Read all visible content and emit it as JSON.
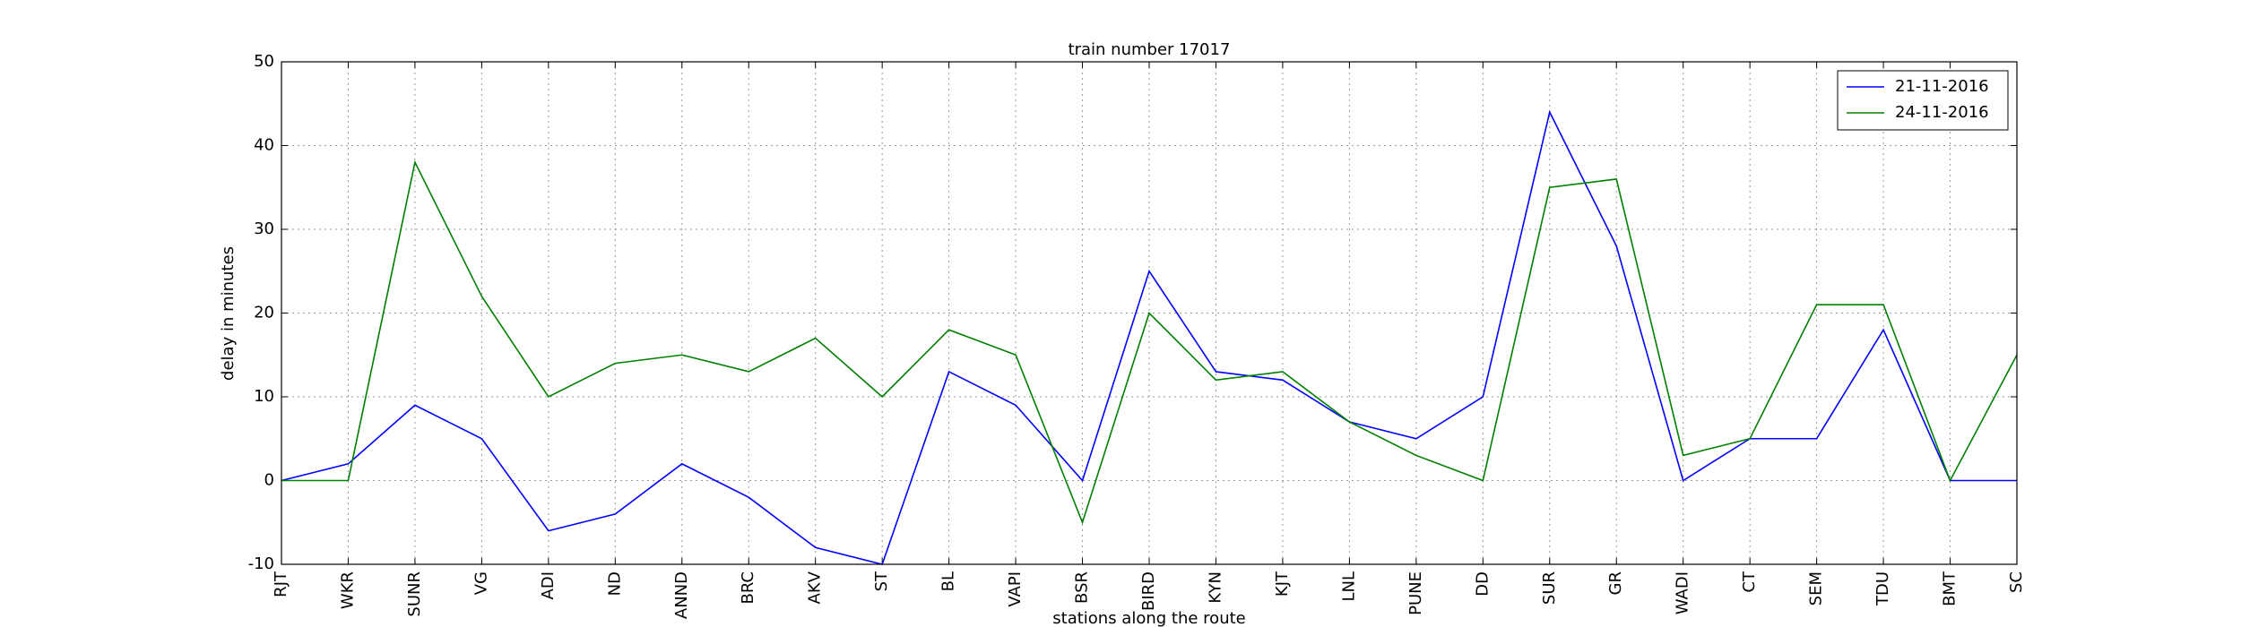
{
  "chart_data": {
    "type": "line",
    "title": "train number 17017",
    "x_label": "stations along the route",
    "y_label": "delay in minutes",
    "categories": [
      "RJT",
      "WKR",
      "SUNR",
      "VG",
      "ADI",
      "ND",
      "ANND",
      "BRC",
      "AKV",
      "ST",
      "BL",
      "VAPI",
      "BSR",
      "BIRD",
      "KYN",
      "KJT",
      "LNL",
      "PUNE",
      "DD",
      "SUR",
      "GR",
      "WADI",
      "CT",
      "SEM",
      "TDU",
      "BMT",
      "SC"
    ],
    "series": [
      {
        "name": "21-11-2016",
        "color": "#0000ff",
        "values": [
          0,
          2,
          9,
          5,
          -6,
          -4,
          2,
          -2,
          -8,
          -10,
          13,
          9,
          0,
          25,
          13,
          12,
          7,
          5,
          10,
          44,
          28,
          0,
          5,
          5,
          18,
          0,
          0
        ]
      },
      {
        "name": "24-11-2016",
        "color": "#008000",
        "values": [
          0,
          0,
          38,
          22,
          10,
          14,
          15,
          13,
          17,
          10,
          18,
          15,
          -5,
          20,
          12,
          13,
          7,
          3,
          0,
          35,
          36,
          3,
          5,
          21,
          21,
          0,
          15
        ]
      }
    ],
    "ylim": [
      -10,
      50
    ],
    "yticks": [
      -10,
      0,
      10,
      20,
      30,
      40,
      50
    ],
    "grid": true,
    "legend": "upper right"
  }
}
